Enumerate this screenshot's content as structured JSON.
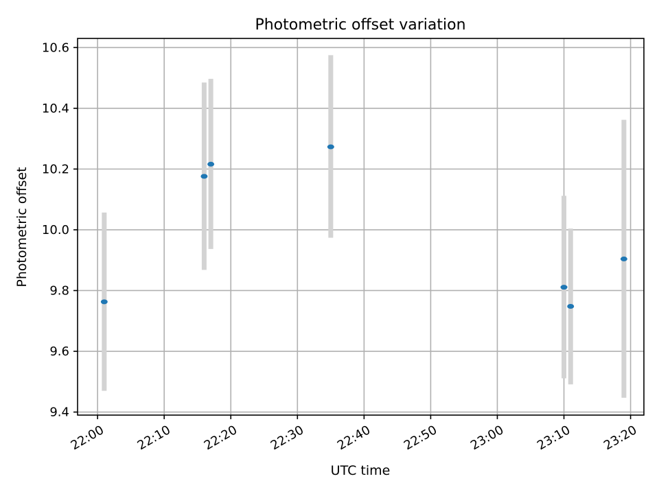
{
  "chart_data": {
    "type": "scatter",
    "title": "Photometric offset variation",
    "xlabel": "UTC time",
    "ylabel": "Photometric offset",
    "x_ticks": [
      "22:00",
      "22:10",
      "22:20",
      "22:30",
      "22:40",
      "22:50",
      "23:00",
      "23:10",
      "23:20"
    ],
    "y_ticks": [
      "9.4",
      "9.6",
      "9.8",
      "10.0",
      "10.2",
      "10.4",
      "10.6"
    ],
    "xlim": [
      "21:57",
      "23:22"
    ],
    "ylim": [
      9.39,
      10.63
    ],
    "grid": true,
    "colors": {
      "point": "#1f77b4",
      "errorbar": "#d3d3d3"
    },
    "points": [
      {
        "time": "22:01",
        "y": 9.763,
        "err_low": 9.47,
        "err_high": 10.057
      },
      {
        "time": "22:16",
        "y": 10.176,
        "err_low": 9.868,
        "err_high": 10.485
      },
      {
        "time": "22:17",
        "y": 10.216,
        "err_low": 9.937,
        "err_high": 10.497
      },
      {
        "time": "22:35",
        "y": 10.273,
        "err_low": 9.974,
        "err_high": 10.575
      },
      {
        "time": "23:10",
        "y": 9.811,
        "err_low": 9.511,
        "err_high": 10.112
      },
      {
        "time": "23:11",
        "y": 9.748,
        "err_low": 9.491,
        "err_high": 10.004
      },
      {
        "time": "23:19",
        "y": 9.904,
        "err_low": 9.447,
        "err_high": 10.362
      }
    ]
  }
}
